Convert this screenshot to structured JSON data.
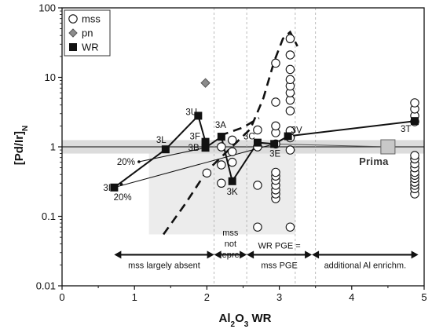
{
  "chart_data": {
    "type": "scatter",
    "xlabel": "Al",
    "xlabel_sub": "2",
    "xlabel_mid": "O",
    "xlabel_sub2": "3",
    "xlabel_tail": " WR",
    "ylabel": "[Pd/Ir]",
    "ylabel_sub": "N",
    "xlim": [
      0,
      5
    ],
    "ylim": [
      0.01,
      100
    ],
    "yscale": "log",
    "x_ticks": [
      "0",
      "1",
      "2",
      "3",
      "4",
      "5"
    ],
    "y_ticks": [
      "0.01",
      "0.1",
      "1",
      "10",
      "100"
    ],
    "legend": {
      "position": "top-left",
      "entries": [
        {
          "label": "mss",
          "marker": "open-circle"
        },
        {
          "label": "pn",
          "marker": "grey-diamond"
        },
        {
          "label": "WR",
          "marker": "filled-square"
        }
      ]
    },
    "mss": [
      [
        2.0,
        0.42
      ],
      [
        2.2,
        0.3
      ],
      [
        2.2,
        0.55
      ],
      [
        2.2,
        1.0
      ],
      [
        2.35,
        0.6
      ],
      [
        2.35,
        0.85
      ],
      [
        2.35,
        1.25
      ],
      [
        2.7,
        0.07
      ],
      [
        2.7,
        0.28
      ],
      [
        2.7,
        1.0
      ],
      [
        2.7,
        1.75
      ],
      [
        2.95,
        0.18
      ],
      [
        2.95,
        0.21
      ],
      [
        2.95,
        0.24
      ],
      [
        2.95,
        0.28
      ],
      [
        2.95,
        0.33
      ],
      [
        2.95,
        0.38
      ],
      [
        2.95,
        0.43
      ],
      [
        2.95,
        1.1
      ],
      [
        2.95,
        1.6
      ],
      [
        2.95,
        2.0
      ],
      [
        2.95,
        4.4
      ],
      [
        2.95,
        16.0
      ],
      [
        3.15,
        0.07
      ],
      [
        3.15,
        0.9
      ],
      [
        3.15,
        1.35
      ],
      [
        3.15,
        1.7
      ],
      [
        3.15,
        3.3
      ],
      [
        3.15,
        4.7
      ],
      [
        3.15,
        6.0
      ],
      [
        3.15,
        7.5
      ],
      [
        3.15,
        9.3
      ],
      [
        3.15,
        13.0
      ],
      [
        3.15,
        21.0
      ],
      [
        3.15,
        36.0
      ],
      [
        4.87,
        0.21
      ],
      [
        4.87,
        0.25
      ],
      [
        4.87,
        0.28
      ],
      [
        4.87,
        0.31
      ],
      [
        4.87,
        0.35
      ],
      [
        4.87,
        0.39
      ],
      [
        4.87,
        0.43
      ],
      [
        4.87,
        0.5
      ],
      [
        4.87,
        0.57
      ],
      [
        4.87,
        0.67
      ],
      [
        4.87,
        0.75
      ],
      [
        4.87,
        2.3
      ],
      [
        4.87,
        2.8
      ],
      [
        4.87,
        3.5
      ],
      [
        4.87,
        4.3
      ]
    ],
    "pn": [
      [
        1.98,
        8.3
      ]
    ],
    "wr": [
      {
        "label": "3I",
        "x": 0.72,
        "y": 0.26
      },
      {
        "label": "3L",
        "x": 1.43,
        "y": 0.92
      },
      {
        "label": "3U",
        "x": 1.88,
        "y": 2.8
      },
      {
        "label": "3F",
        "x": 1.98,
        "y": 1.18
      },
      {
        "label": "3B",
        "x": 1.98,
        "y": 0.97
      },
      {
        "label": "3A",
        "x": 2.2,
        "y": 1.4
      },
      {
        "label": "3K",
        "x": 2.35,
        "y": 0.32
      },
      {
        "label": "3C",
        "x": 2.7,
        "y": 1.15
      },
      {
        "label": "3E",
        "x": 2.93,
        "y": 1.1
      },
      {
        "label": "3V",
        "x": 3.12,
        "y": 1.42
      },
      {
        "label": "3T",
        "x": 4.87,
        "y": 2.35
      }
    ],
    "prima": {
      "label": "Prima",
      "x": 4.5,
      "y": 1.0
    },
    "pct_labels": [
      {
        "text": "20%",
        "x": 0.82,
        "y": 0.19
      },
      {
        "text": "20%",
        "x": 0.78,
        "y": 0.61
      }
    ],
    "regions": [
      {
        "text": "mss largely absent",
        "x_range": [
          0.72,
          2.1
        ]
      },
      {
        "text": "mss not repre.",
        "x_range": [
          2.1,
          2.55
        ]
      },
      {
        "text": "WR PGE = mss PGE",
        "x_range": [
          2.55,
          3.45
        ]
      },
      {
        "text": "additional Al enrichm.",
        "x_range": [
          3.45,
          4.92
        ]
      }
    ],
    "region_label_lines": {
      "a": [
        "mss largely absent"
      ],
      "b": [
        "mss",
        "not",
        "repre."
      ],
      "c": [
        "WR PGE =",
        "mss PGE"
      ],
      "d": [
        "additional Al enrichm."
      ]
    },
    "grid": false,
    "colors": {
      "band": "#dcdcdc",
      "shade": "#ececec",
      "prima": "#c8c8c8",
      "pn": "#8c8c8c"
    }
  }
}
